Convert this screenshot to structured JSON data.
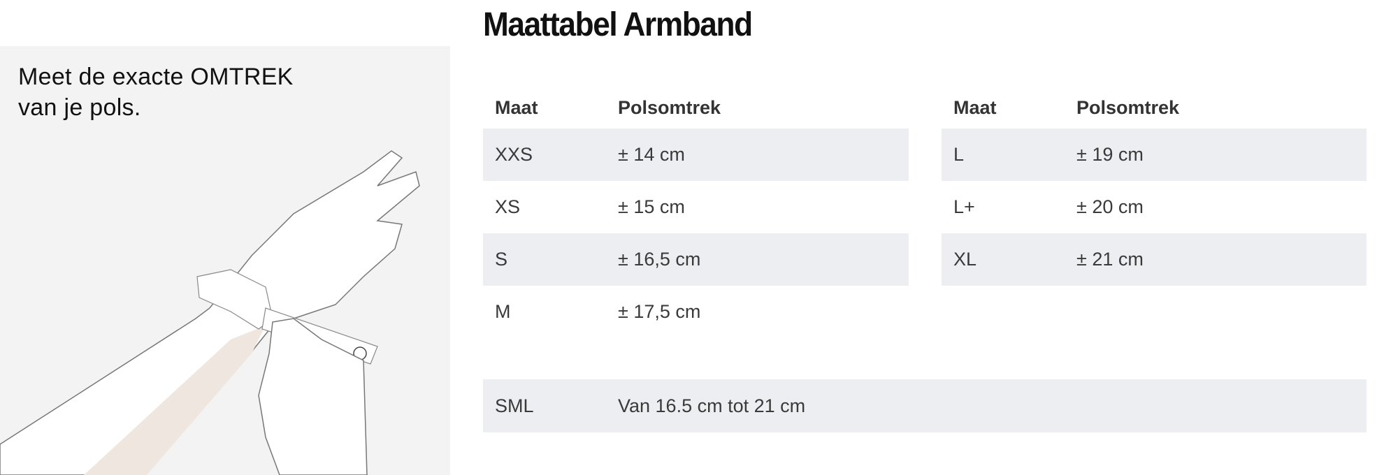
{
  "instruction": {
    "line1": "Meet de exacte OMTREK",
    "line2": "van je pols."
  },
  "title": "Maattabel Armband",
  "headers": {
    "size": "Maat",
    "wrist": "Polsomtrek"
  },
  "left_table": [
    {
      "size": "XXS",
      "wrist": "± 14 cm"
    },
    {
      "size": "XS",
      "wrist": "± 15 cm"
    },
    {
      "size": "S",
      "wrist": "± 16,5 cm"
    },
    {
      "size": "M",
      "wrist": "± 17,5 cm"
    }
  ],
  "right_table": [
    {
      "size": "L",
      "wrist": "± 19 cm"
    },
    {
      "size": "L+",
      "wrist": "± 20 cm"
    },
    {
      "size": "XL",
      "wrist": "± 21 cm"
    }
  ],
  "sml": {
    "size": "SML",
    "wrist": "Van 16.5 cm tot 21 cm"
  },
  "colors": {
    "row_shade": "#edeef1",
    "panel_bg": "#f3f3f3",
    "text": "#3a3a3a"
  }
}
